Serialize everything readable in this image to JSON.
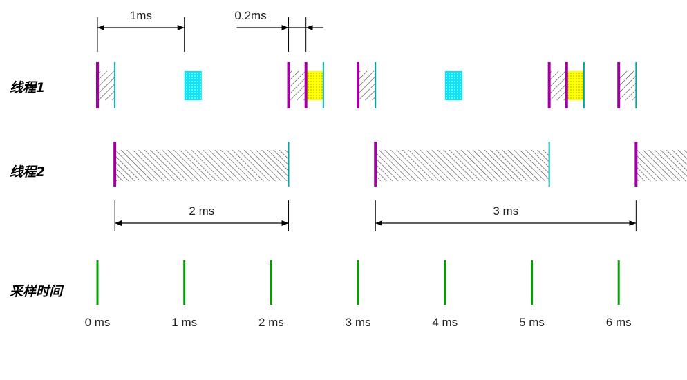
{
  "colors": {
    "start_marker": "#a000a0",
    "end_marker": "#00a8a8",
    "sample_tick": "#00a000",
    "cpu_block": "#00e0ff",
    "wait_block": "#ffff00",
    "hatch": "#444444"
  },
  "rows": {
    "thread1": "线程1",
    "thread2": "线程2",
    "sampling": "采样时间"
  },
  "sampling": {
    "times_ms": [
      0,
      1,
      2,
      3,
      4,
      5,
      6
    ],
    "labels": [
      "0 ms",
      "1 ms",
      "2 ms",
      "3 ms",
      "4 ms",
      "5 ms",
      "6 ms"
    ]
  },
  "thread1": {
    "start_markers_ms": [
      0,
      2.2,
      2.4,
      3.0,
      5.2,
      5.4,
      6.0
    ],
    "end_markers_ms": [
      0.2,
      2.6,
      3.2,
      5.6,
      6.2
    ],
    "hatched_ms": [
      [
        0,
        0.2
      ],
      [
        2.2,
        2.4
      ],
      [
        3.0,
        3.2
      ],
      [
        5.2,
        5.4
      ],
      [
        6.0,
        6.2
      ]
    ],
    "cpu_blocks_ms": [
      [
        1.0,
        1.2
      ],
      [
        4.0,
        4.2
      ]
    ],
    "wait_blocks_ms": [
      [
        2.4,
        2.6
      ],
      [
        5.4,
        5.6
      ]
    ]
  },
  "thread2": {
    "start_markers_ms": [
      0.2,
      3.2,
      6.2
    ],
    "end_markers_ms": [
      2.2,
      5.2
    ],
    "hatched_ms": [
      [
        0.2,
        2.2
      ],
      [
        3.2,
        5.2
      ],
      [
        6.2,
        6.8
      ]
    ]
  },
  "dimensions": [
    {
      "label": "1ms",
      "from_ms": 0,
      "to_ms": 1,
      "style": "inside",
      "row": "top"
    },
    {
      "label": "0.2ms",
      "from_ms": 2.2,
      "to_ms": 2.4,
      "style": "outside",
      "row": "top"
    },
    {
      "label": "2 ms",
      "from_ms": 0.2,
      "to_ms": 2.2,
      "style": "inside",
      "row": "middle"
    },
    {
      "label": "3 ms",
      "from_ms": 3.2,
      "to_ms": 6.2,
      "style": "inside",
      "row": "middle"
    }
  ]
}
